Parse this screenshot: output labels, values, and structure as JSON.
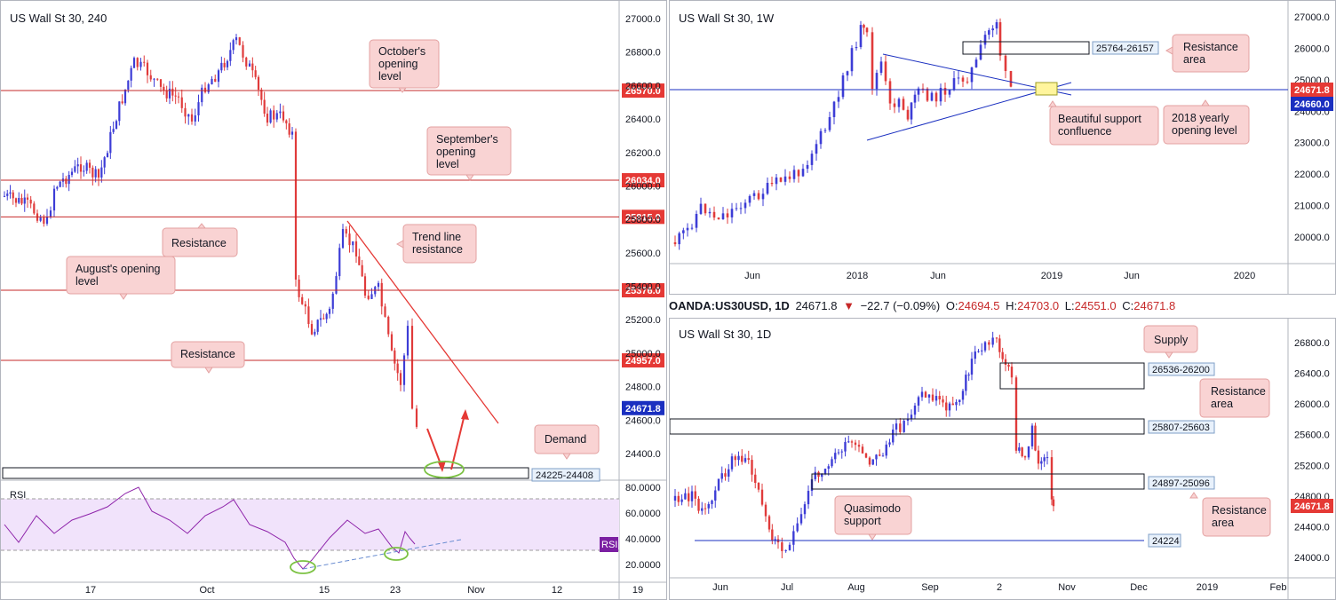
{
  "colors": {
    "bull": "#3d3dd6",
    "bear": "#e03b3b",
    "level_red": "#c62828",
    "level_blue": "#1a2fc0",
    "callout_fill": "#f9d3d3",
    "callout_stroke": "#e3a0a0",
    "rsi_line": "#8e24aa",
    "rsi_band": "#f1e3fb",
    "ellipse": "#7cc243",
    "zone_fill": "#fff59d"
  },
  "chart_data": [
    {
      "id": "h4",
      "type": "candlestick",
      "title": "US Wall St 30, 240",
      "y_ticks": [
        "27000.0",
        "26800.0",
        "26600.0",
        "26400.0",
        "26200.0",
        "26000.0",
        "25800.0",
        "25600.0",
        "25400.0",
        "25200.0",
        "25000.0",
        "24800.0",
        "24600.0",
        "24400.0"
      ],
      "x_ticks": [
        "17",
        "Oct",
        "15",
        "23",
        "Nov",
        "12",
        "19"
      ],
      "ylim": [
        24300,
        27100
      ],
      "levels": [
        {
          "label": "26570.0",
          "value": 26570,
          "color": "red"
        },
        {
          "label": "26034.0",
          "value": 26034,
          "color": "red"
        },
        {
          "label": "25815.0",
          "value": 25815,
          "color": "red"
        },
        {
          "label": "25376.0",
          "value": 25376,
          "color": "red"
        },
        {
          "label": "24957.0",
          "value": 24957,
          "color": "red"
        },
        {
          "label": "24671.8",
          "value": 24671.8,
          "color": "blue"
        }
      ],
      "zone_label": "24225-24408",
      "callouts": [
        {
          "key": "octobers_opening_level",
          "text": [
            "October's",
            "opening",
            "level"
          ]
        },
        {
          "key": "septembers_opening_level",
          "text": [
            "September's",
            "opening",
            "level"
          ]
        },
        {
          "key": "resistance_upper",
          "text": [
            "Resistance"
          ]
        },
        {
          "key": "augusts_opening_level",
          "text": [
            "August's opening",
            "level"
          ]
        },
        {
          "key": "resistance_lower",
          "text": [
            "Resistance"
          ]
        },
        {
          "key": "trend_line_resistance",
          "text": [
            "Trend line",
            "resistance"
          ]
        },
        {
          "key": "demand",
          "text": [
            "Demand"
          ]
        }
      ],
      "rsi": {
        "label": "RSI",
        "badge": "RSI",
        "y_ticks": [
          "80.0000",
          "60.0000",
          "40.0000",
          "20.0000"
        ],
        "band": [
          30,
          70
        ]
      }
    },
    {
      "id": "weekly",
      "type": "candlestick",
      "title": "US Wall St 30, 1W",
      "y_ticks": [
        "27000.0",
        "26000.0",
        "25000.0",
        "24000.0",
        "23000.0",
        "22000.0",
        "21000.0",
        "20000.0"
      ],
      "x_ticks": [
        "Jun",
        "2018",
        "Jun",
        "2019",
        "Jun",
        "2020"
      ],
      "ylim": [
        19600,
        27200
      ],
      "levels": [
        {
          "label": "24671.8",
          "value": 24671.8,
          "color": "red"
        },
        {
          "label": "24660.0",
          "value": 24660,
          "color": "blue"
        }
      ],
      "zone_label": "25764-26157",
      "callouts": [
        {
          "key": "resistance_area",
          "text": [
            "Resistance",
            "area"
          ]
        },
        {
          "key": "beautiful_support",
          "text": [
            "Beautiful support",
            "confluence"
          ]
        },
        {
          "key": "yearly_opening",
          "text": [
            "2018 yearly",
            "opening level"
          ]
        }
      ]
    },
    {
      "id": "daily",
      "type": "candlestick",
      "title": "US Wall St 30, 1D",
      "y_ticks": [
        "26800.0",
        "26400.0",
        "26000.0",
        "25600.0",
        "25200.0",
        "24800.0",
        "24400.0",
        "24000.0"
      ],
      "x_ticks": [
        "Jun",
        "Jul",
        "Aug",
        "Sep",
        "2",
        "Nov",
        "Dec",
        "2019",
        "Feb"
      ],
      "ylim": [
        23900,
        27000
      ],
      "levels": [
        {
          "label": "24671.8",
          "value": 24671.8,
          "color": "red"
        },
        {
          "label": "24224",
          "value": 24224,
          "color": "blue"
        }
      ],
      "zones": [
        "26536-26200",
        "25807-25603",
        "24897-25096"
      ],
      "callouts": [
        {
          "key": "supply",
          "text": [
            "Supply"
          ]
        },
        {
          "key": "resistance_area_top",
          "text": [
            "Resistance",
            "area"
          ]
        },
        {
          "key": "quasimodo",
          "text": [
            "Quasimodo",
            "support"
          ]
        },
        {
          "key": "resistance_area_bottom",
          "text": [
            "Resistance",
            "area"
          ]
        }
      ]
    }
  ],
  "ohlc_bar": {
    "symbol": "OANDA:US30USD, 1D",
    "last": "24671.8",
    "change": "−22.7 (−0.09%)",
    "o_label": "O:",
    "o": "24694.5",
    "h_label": "H:",
    "h": "24703.0",
    "l_label": "L:",
    "l": "24551.0",
    "c_label": "C:",
    "c": "24671.8"
  }
}
